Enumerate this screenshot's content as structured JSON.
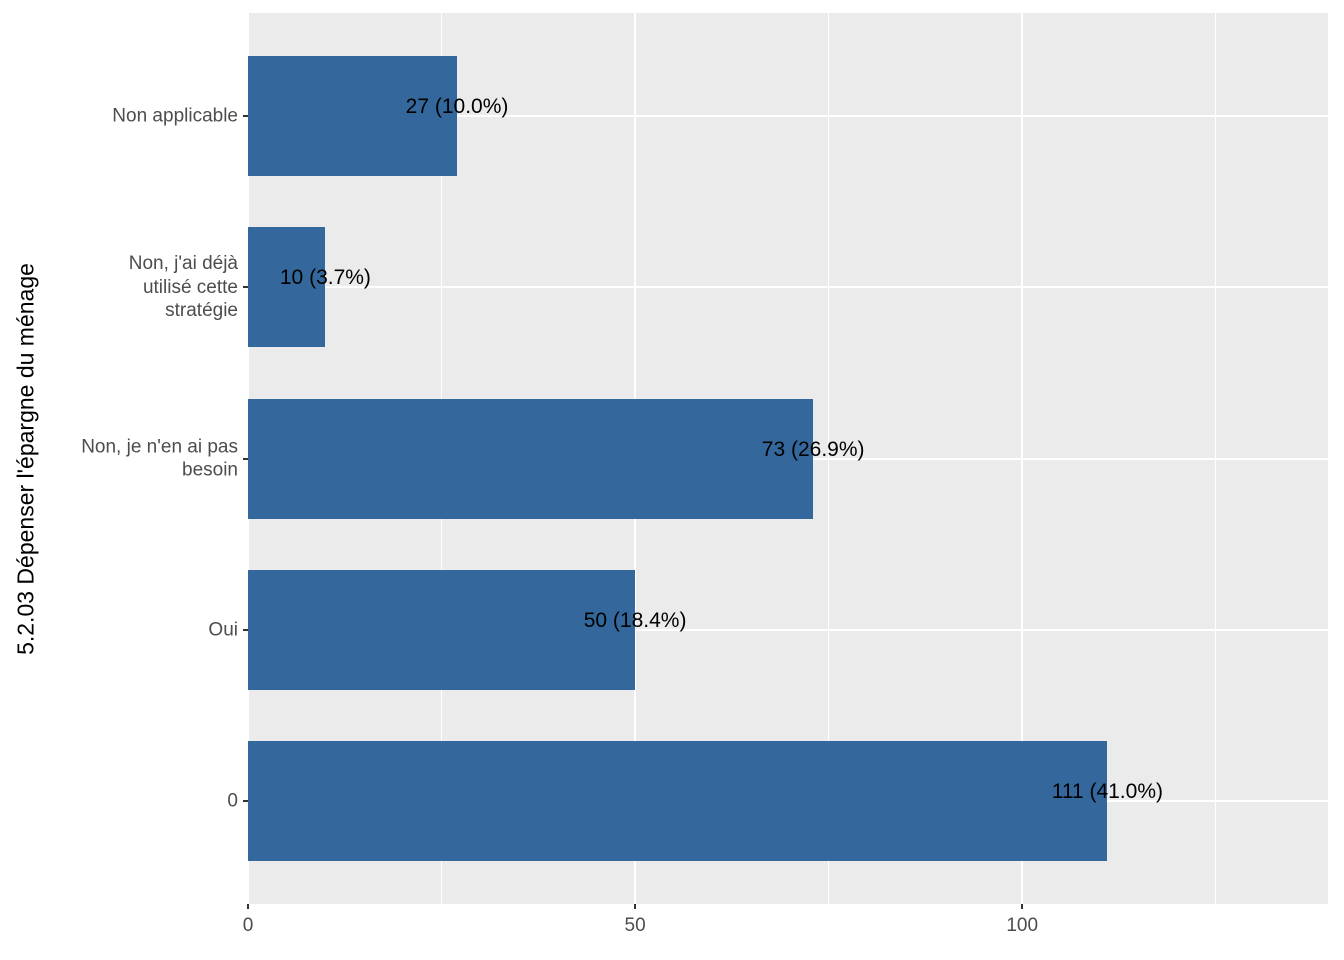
{
  "chart_data": {
    "type": "bar",
    "orientation": "horizontal",
    "title": "",
    "ylabel": "5.2.03 Dépenser l'épargne du ménage",
    "xlabel": "",
    "categories": [
      "Non applicable",
      "Non, j'ai déjà utilisé cette stratégie",
      "Non, je n'en ai pas besoin",
      "Oui",
      "0"
    ],
    "category_lines": [
      [
        "Non applicable"
      ],
      [
        "Non, j'ai déjà",
        "utilisé cette",
        "stratégie"
      ],
      [
        "Non, je n'en ai pas",
        "besoin"
      ],
      [
        "Oui"
      ],
      [
        "0"
      ]
    ],
    "values": [
      27,
      10,
      73,
      50,
      111
    ],
    "percents": [
      10.0,
      3.7,
      26.9,
      18.4,
      41.0
    ],
    "bar_labels": [
      "27 (10.0%)",
      "10 (3.7%)",
      "73 (26.9%)",
      "50 (18.4%)",
      "111 (41.0%)"
    ],
    "x_ticks": [
      0,
      50,
      100
    ],
    "x_minor_ticks": [
      25,
      75,
      125
    ],
    "xlim": [
      0,
      139.5
    ],
    "grid": "white major and minor on grey panel",
    "legend_position": "none",
    "colors": {
      "bar": "#34689C",
      "panel_bg": "#EBEBEB",
      "grid": "#FFFFFF",
      "axis_text": "#4D4D4D",
      "tick_mark": "#333333",
      "label_text": "#000000"
    }
  }
}
